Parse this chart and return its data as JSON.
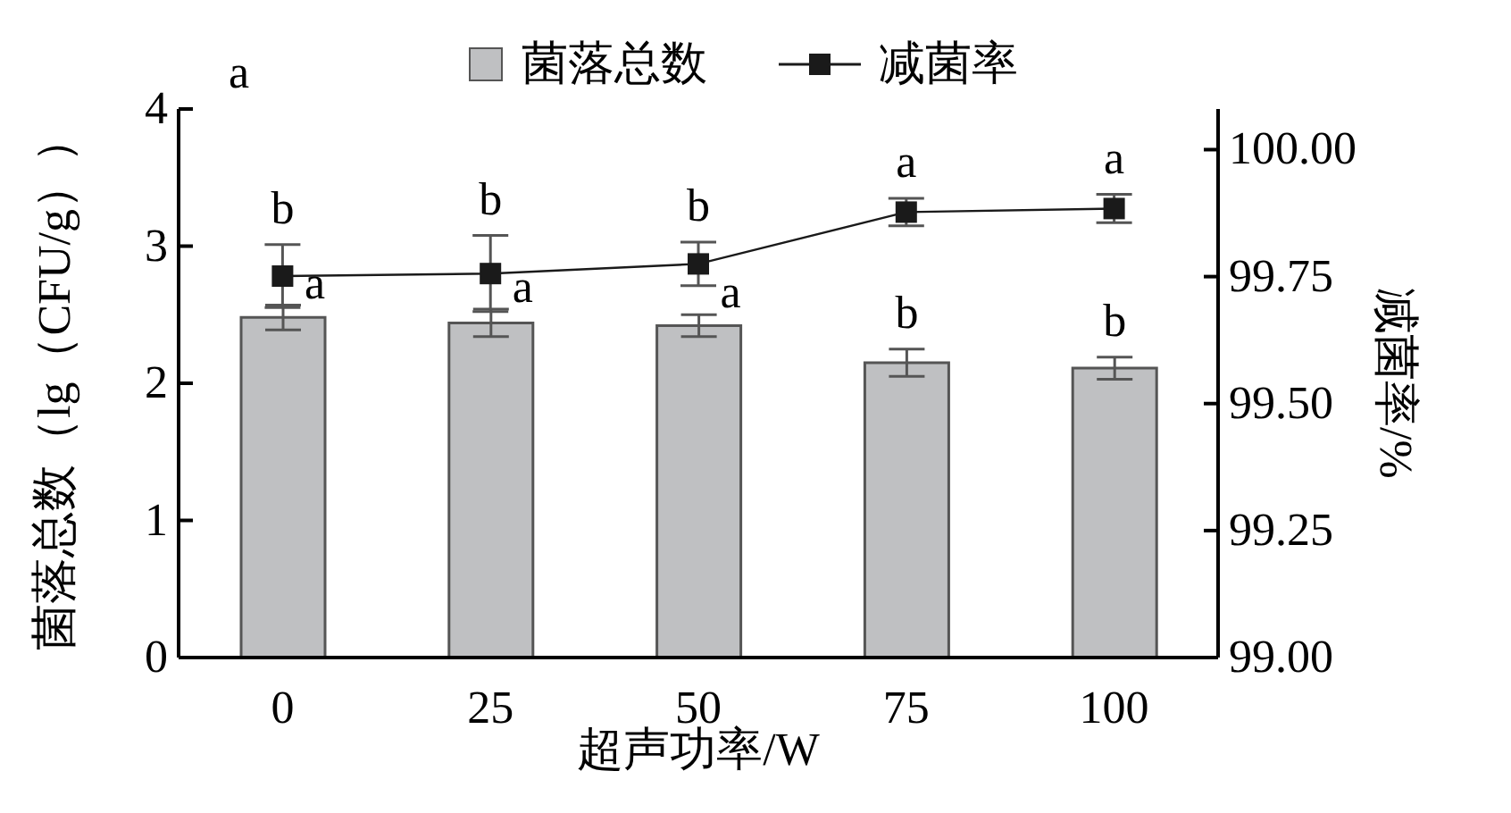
{
  "chart_data": {
    "type": "bar",
    "categories": [
      "0",
      "25",
      "50",
      "75",
      "100"
    ],
    "xlabel": "超声功率/W",
    "ylabel": "菌落总数（lg（CFU/g））",
    "y2label": "减菌率/%",
    "series": [
      {
        "name": "菌落总数",
        "color": "#bfc0c2",
        "values": [
          2.48,
          2.44,
          2.42,
          2.15,
          2.11
        ],
        "errors": [
          0.09,
          0.1,
          0.08,
          0.1,
          0.08
        ],
        "value_labels": [
          "a",
          "a",
          "a",
          "b",
          "b"
        ]
      },
      {
        "name": "减菌率",
        "type": "line",
        "axis": "y2",
        "color": "#1a1a1a",
        "marker": "square",
        "values": [
          99.751,
          99.756,
          99.775,
          99.877,
          99.884
        ],
        "errors": [
          0.062,
          0.075,
          0.043,
          0.027,
          0.028
        ],
        "value_labels": [
          "b",
          "b",
          "b",
          "a",
          "a"
        ]
      }
    ],
    "ylim": [
      0,
      4
    ],
    "yticks": [
      0,
      1,
      2,
      3,
      4
    ],
    "y2lim": [
      99,
      100.08
    ],
    "y2ticks": [
      {
        "value": 99,
        "label": "99.00"
      },
      {
        "value": 99.25,
        "label": "99.25"
      },
      {
        "value": 99.5,
        "label": "99.50"
      },
      {
        "value": 99.75,
        "label": "99.75"
      },
      {
        "value": 100,
        "label": "100.00"
      }
    ],
    "legend": "top",
    "grid": false,
    "annotations": [
      "a"
    ]
  }
}
